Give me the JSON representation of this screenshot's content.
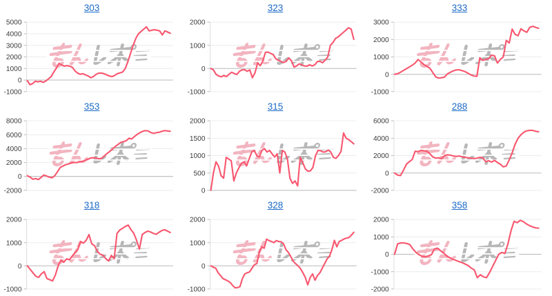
{
  "page": {
    "background": "#ffffff"
  },
  "colors": {
    "line": "#f8576f",
    "grid_line": "#ececec",
    "zero_line": "#b9b9b9",
    "axis_line": "#dddddd",
    "tick_mark": "#bbbbbb",
    "tick_label": "#3c3c3c",
    "link_blue": "#1b6ac6"
  },
  "watermark": {
    "text": "みんレポ",
    "part1": "みん",
    "part2": "レポ",
    "pink": "#f0a9b6",
    "gray": "#ababab"
  },
  "chart_data": [
    {
      "type": "line",
      "title": "303",
      "xlabel": "",
      "ylabel": "",
      "ylim": [
        -1000,
        5000
      ],
      "yticks": [
        5000,
        4000,
        3000,
        2000,
        1000,
        0,
        -1000
      ],
      "values": [
        -50,
        -400,
        -300,
        -100,
        -150,
        -100,
        -200,
        -80,
        100,
        300,
        700,
        1050,
        1450,
        1300,
        1200,
        1250,
        1200,
        1100,
        800,
        600,
        500,
        550,
        450,
        350,
        200,
        300,
        500,
        600,
        600,
        550,
        450,
        350,
        300,
        400,
        550,
        620,
        700,
        1000,
        1600,
        2300,
        3000,
        3600,
        4000,
        4200,
        4400,
        4600,
        4250,
        4300,
        4350,
        4300,
        4250,
        3900,
        4250,
        4150,
        4050
      ]
    },
    {
      "type": "line",
      "title": "323",
      "xlabel": "",
      "ylabel": "",
      "ylim": [
        -1000,
        2000
      ],
      "yticks": [
        2000,
        1000,
        0,
        -1000
      ],
      "values": [
        0,
        -60,
        -250,
        -320,
        -360,
        -300,
        -350,
        -250,
        -160,
        -220,
        -260,
        -120,
        -60,
        -50,
        -120,
        -60,
        -400,
        -180,
        250,
        120,
        320,
        700,
        710,
        650,
        600,
        420,
        350,
        300,
        260,
        310,
        450,
        340,
        60,
        110,
        200,
        150,
        110,
        100,
        160,
        110,
        160,
        300,
        310,
        250,
        360,
        500,
        1000,
        1120,
        1300,
        1360,
        1460,
        1560,
        1660,
        1760,
        1700,
        1260
      ]
    },
    {
      "type": "line",
      "title": "333",
      "xlabel": "",
      "ylabel": "",
      "ylim": [
        -1000,
        3000
      ],
      "yticks": [
        3000,
        2000,
        1000,
        0,
        -1000
      ],
      "values": [
        0,
        30,
        120,
        220,
        320,
        420,
        520,
        650,
        850,
        700,
        560,
        450,
        350,
        100,
        -150,
        -220,
        -200,
        -160,
        30,
        120,
        200,
        250,
        260,
        210,
        150,
        60,
        -40,
        -100,
        -120,
        950,
        800,
        860,
        900,
        1100,
        1060,
        650,
        860,
        1000,
        1950,
        1800,
        2600,
        2300,
        2220,
        2620,
        2500,
        2420,
        2700,
        2760,
        2700,
        2650
      ]
    },
    {
      "type": "line",
      "title": "353",
      "xlabel": "",
      "ylabel": "",
      "ylim": [
        -2000,
        8000
      ],
      "yticks": [
        8000,
        6000,
        4000,
        2000,
        0,
        -2000
      ],
      "values": [
        100,
        -100,
        -400,
        -300,
        -450,
        -150,
        200,
        50,
        -100,
        -200,
        100,
        700,
        1300,
        1500,
        1700,
        1800,
        1950,
        2000,
        2000,
        2100,
        2150,
        2300,
        2450,
        2650,
        2700,
        2650,
        2550,
        2600,
        2950,
        3300,
        3600,
        3950,
        4300,
        4600,
        4900,
        5000,
        5150,
        5500,
        5400,
        5750,
        6050,
        6300,
        6500,
        6600,
        6550,
        6300,
        6200,
        6300,
        6350,
        6500,
        6600,
        6550,
        6500
      ]
    },
    {
      "type": "line",
      "title": "315",
      "xlabel": "",
      "ylabel": "",
      "ylim": [
        0,
        2000
      ],
      "yticks": [
        2000,
        1500,
        1000,
        500,
        0
      ],
      "values": [
        0,
        500,
        820,
        700,
        420,
        350,
        950,
        900,
        850,
        270,
        500,
        650,
        780,
        820,
        700,
        900,
        1100,
        1150,
        1000,
        960,
        1150,
        1200,
        1100,
        1150,
        1050,
        960,
        1050,
        500,
        1150,
        1100,
        900,
        350,
        200,
        270,
        130,
        950,
        800,
        620,
        550,
        560,
        660,
        1000,
        1150,
        1140,
        1100,
        1110,
        1160,
        1100,
        950,
        920,
        1000,
        1120,
        1650,
        1500,
        1460,
        1400,
        1340
      ]
    },
    {
      "type": "line",
      "title": "288",
      "xlabel": "",
      "ylabel": "",
      "ylim": [
        -2000,
        6000
      ],
      "yticks": [
        6000,
        4000,
        2000,
        0,
        -2000
      ],
      "values": [
        0,
        -250,
        -300,
        300,
        1000,
        1300,
        1550,
        2500,
        2450,
        2600,
        2550,
        2500,
        2200,
        1850,
        1700,
        1750,
        1650,
        2000,
        2100,
        2050,
        1950,
        1900,
        1950,
        1850,
        1800,
        1750,
        1700,
        1650,
        1700,
        1800,
        1750,
        1300,
        1400,
        1250,
        1450,
        1200,
        1000,
        700,
        800,
        1500,
        2300,
        3300,
        4000,
        4400,
        4700,
        4850,
        4900,
        4900,
        4800,
        4750
      ]
    },
    {
      "type": "line",
      "title": "318",
      "xlabel": "",
      "ylabel": "",
      "ylim": [
        -1000,
        2000
      ],
      "yticks": [
        2000,
        1000,
        0,
        -1000
      ],
      "values": [
        0,
        -150,
        -300,
        -450,
        -500,
        -350,
        -250,
        -550,
        -600,
        -650,
        -400,
        0,
        250,
        150,
        300,
        260,
        420,
        560,
        700,
        1050,
        980,
        1100,
        1350,
        950,
        870,
        620,
        500,
        460,
        310,
        210,
        450,
        310,
        1400,
        1550,
        1620,
        1700,
        1760,
        1560,
        1400,
        1100,
        720,
        1350,
        1440,
        1500,
        1460,
        1400,
        1360,
        1450,
        1520,
        1560,
        1500,
        1440
      ]
    },
    {
      "type": "line",
      "title": "328",
      "xlabel": "",
      "ylabel": "",
      "ylim": [
        -1000,
        2000
      ],
      "yticks": [
        2000,
        1000,
        0,
        -1000
      ],
      "values": [
        0,
        -60,
        -100,
        -300,
        -420,
        -550,
        -600,
        -650,
        -720,
        -850,
        -950,
        -940,
        -900,
        -560,
        -350,
        -300,
        -260,
        -100,
        50,
        100,
        600,
        820,
        760,
        1150,
        1090,
        1050,
        1000,
        1090,
        1050,
        1040,
        950,
        700,
        580,
        400,
        200,
        90,
        0,
        -120,
        -300,
        -500,
        -820,
        -500,
        -350,
        -620,
        -420,
        -300,
        -100,
        100,
        300,
        420,
        700,
        1100,
        820,
        1050,
        1100,
        1160,
        1200,
        1220,
        1320,
        1450
      ]
    },
    {
      "type": "line",
      "title": "358",
      "xlabel": "",
      "ylabel": "",
      "ylim": [
        -2000,
        2000
      ],
      "yticks": [
        2000,
        1000,
        0,
        -1000,
        -2000
      ],
      "values": [
        0,
        600,
        650,
        650,
        620,
        550,
        300,
        100,
        -30,
        -120,
        -150,
        -100,
        -30,
        300,
        350,
        200,
        80,
        -100,
        -200,
        -280,
        -350,
        -420,
        -480,
        -560,
        -650,
        -800,
        -900,
        -1350,
        -1180,
        -1300,
        -1350,
        -1050,
        -700,
        -350,
        0,
        100,
        50,
        600,
        1350,
        1900,
        1820,
        1950,
        1880,
        1750,
        1650,
        1580,
        1520,
        1500
      ]
    }
  ]
}
